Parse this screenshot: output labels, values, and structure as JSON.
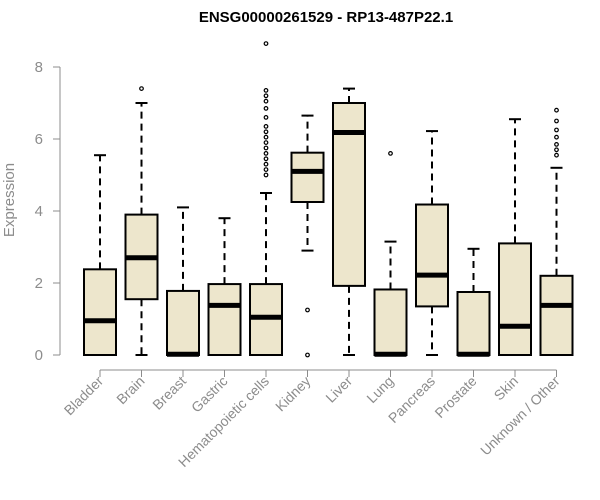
{
  "chart_data": {
    "type": "boxplot",
    "title": "ENSG00000261529 - RP13-487P22.1",
    "xlabel": "",
    "ylabel": "Expression",
    "ylim": [
      0,
      8
    ],
    "yticks": [
      0,
      2,
      4,
      6,
      8
    ],
    "categories": [
      "Bladder",
      "Brain",
      "Breast",
      "Gastric",
      "Hematopoietic cells",
      "Kidney",
      "Liver",
      "Lung",
      "Pancreas",
      "Prostate",
      "Skin",
      "Unknown / Other"
    ],
    "boxes": [
      {
        "category": "Bladder",
        "whisker_low": 0,
        "q1": 0,
        "median": 0.95,
        "q3": 2.38,
        "whisker_high": 5.55,
        "outliers": []
      },
      {
        "category": "Brain",
        "whisker_low": 0,
        "q1": 1.55,
        "median": 2.7,
        "q3": 3.9,
        "whisker_high": 7.0,
        "outliers": [
          7.4
        ]
      },
      {
        "category": "Breast",
        "whisker_low": 0,
        "q1": 0,
        "median": 0.02,
        "q3": 1.78,
        "whisker_high": 4.1,
        "outliers": []
      },
      {
        "category": "Gastric",
        "whisker_low": 0,
        "q1": 0,
        "median": 1.38,
        "q3": 1.97,
        "whisker_high": 3.8,
        "outliers": []
      },
      {
        "category": "Hematopoietic cells",
        "whisker_low": 0,
        "q1": 0,
        "median": 1.05,
        "q3": 1.97,
        "whisker_high": 4.5,
        "outliers": [
          5.0,
          5.15,
          5.3,
          5.45,
          5.6,
          5.75,
          5.9,
          6.05,
          6.2,
          6.35,
          6.6,
          6.85,
          7.05,
          7.2,
          7.35,
          8.65
        ]
      },
      {
        "category": "Kidney",
        "whisker_low": 2.9,
        "q1": 4.25,
        "median": 5.1,
        "q3": 5.62,
        "whisker_high": 6.65,
        "outliers": [
          1.25,
          0
        ]
      },
      {
        "category": "Liver",
        "whisker_low": 0,
        "q1": 1.92,
        "median": 6.18,
        "q3": 7.0,
        "whisker_high": 7.4,
        "outliers": []
      },
      {
        "category": "Lung",
        "whisker_low": 0,
        "q1": 0,
        "median": 0.02,
        "q3": 1.82,
        "whisker_high": 3.15,
        "outliers": [
          5.6
        ]
      },
      {
        "category": "Pancreas",
        "whisker_low": 0,
        "q1": 1.35,
        "median": 2.22,
        "q3": 4.18,
        "whisker_high": 6.22,
        "outliers": []
      },
      {
        "category": "Prostate",
        "whisker_low": 0,
        "q1": 0,
        "median": 0.02,
        "q3": 1.75,
        "whisker_high": 2.95,
        "outliers": []
      },
      {
        "category": "Skin",
        "whisker_low": 0,
        "q1": 0,
        "median": 0.8,
        "q3": 3.1,
        "whisker_high": 6.55,
        "outliers": []
      },
      {
        "category": "Unknown / Other",
        "whisker_low": 0,
        "q1": 0,
        "median": 1.38,
        "q3": 2.2,
        "whisker_high": 5.2,
        "outliers": [
          5.55,
          5.7,
          5.85,
          6.05,
          6.25,
          6.5,
          6.8
        ]
      }
    ],
    "grid": false,
    "colors": {
      "box_fill": "#ede6cc",
      "box_stroke": "#000000",
      "axis": "#8c8c8c"
    }
  }
}
